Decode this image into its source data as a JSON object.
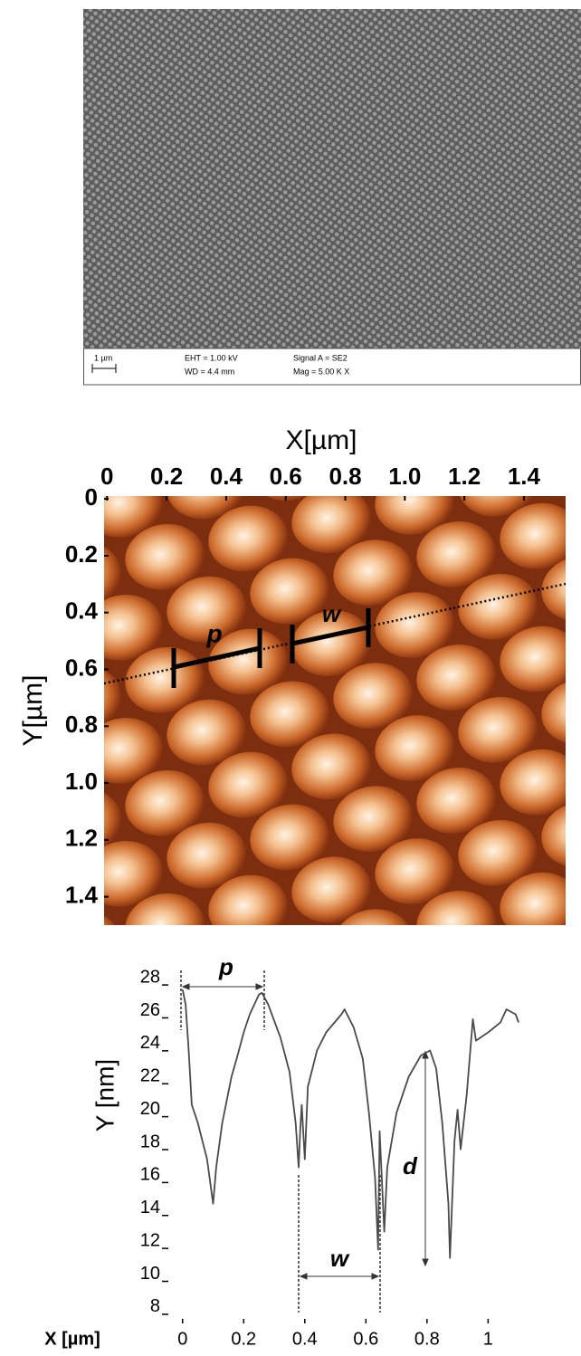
{
  "sem": {
    "scale_bar": "1 µm",
    "eht": "EHT = 1.00 kV",
    "wd": "WD = 4.4 mm",
    "signal": "Signal A = SE2",
    "mag": "Mag =  5.00 K X"
  },
  "chart_data": [
    {
      "type": "image",
      "x_label": "X[µm]",
      "y_label": "Y[µm]",
      "xlim": [
        -0.01,
        1.54
      ],
      "ylim": [
        -0.01,
        1.5
      ],
      "y_reversed": true,
      "xticks": [
        0,
        0.2,
        0.4,
        0.6,
        0.8,
        {
          "value": 1,
          "label": "1.0"
        },
        1.2,
        1.4
      ],
      "yticks": [
        0,
        0.2,
        0.4,
        0.6,
        0.8,
        {
          "value": 1,
          "label": "1.0"
        },
        1.2,
        1.4
      ],
      "annotations": [
        "p",
        "w"
      ]
    },
    {
      "type": "line",
      "x_label": "X [µm]",
      "y_label": "Y [nm]",
      "color": "#4a4a4a",
      "xlim": [
        -0.02,
        1.15
      ],
      "ylim": [
        7.5,
        28.5
      ],
      "xticks": [
        0,
        0.2,
        0.4,
        0.6,
        0.8,
        1
      ],
      "yticks": [
        8,
        10,
        12,
        14,
        16,
        18,
        20,
        22,
        24,
        26,
        28
      ],
      "annotations": [
        "p",
        "w",
        "d"
      ],
      "x": [
        0,
        0.01,
        0.02,
        0.03,
        0.05,
        0.08,
        0.1,
        0.11,
        0.13,
        0.16,
        0.18,
        0.2,
        0.22,
        0.25,
        0.26,
        0.28,
        0.32,
        0.35,
        0.37,
        0.38,
        0.385,
        0.39,
        0.4,
        0.41,
        0.44,
        0.47,
        0.52,
        0.53,
        0.56,
        0.59,
        0.61,
        0.63,
        0.64,
        0.645,
        0.66,
        0.67,
        0.7,
        0.74,
        0.78,
        0.81,
        0.83,
        0.85,
        0.87,
        0.875,
        0.89,
        0.9,
        0.91,
        0.93,
        0.95,
        0.96,
        1,
        1.04,
        1.06,
        1.09,
        1.1
      ],
      "values": [
        27.5,
        26.6,
        23.8,
        20.5,
        19.4,
        17.2,
        14.5,
        16.7,
        19.4,
        22.2,
        23.5,
        24.9,
        26,
        27.2,
        27.3,
        26.6,
        24.6,
        22.5,
        19.4,
        16.7,
        18.9,
        20.5,
        17.2,
        21.6,
        23.8,
        24.9,
        26,
        26.3,
        25.2,
        23.3,
        20,
        16.1,
        11.7,
        18.9,
        12.8,
        16.7,
        20,
        22.2,
        23.5,
        23.8,
        22.7,
        19.4,
        14.5,
        11.2,
        18.3,
        20.2,
        17.8,
        21.1,
        25.7,
        24.4,
        24.9,
        25.5,
        26.3,
        26,
        25.5
      ]
    }
  ]
}
